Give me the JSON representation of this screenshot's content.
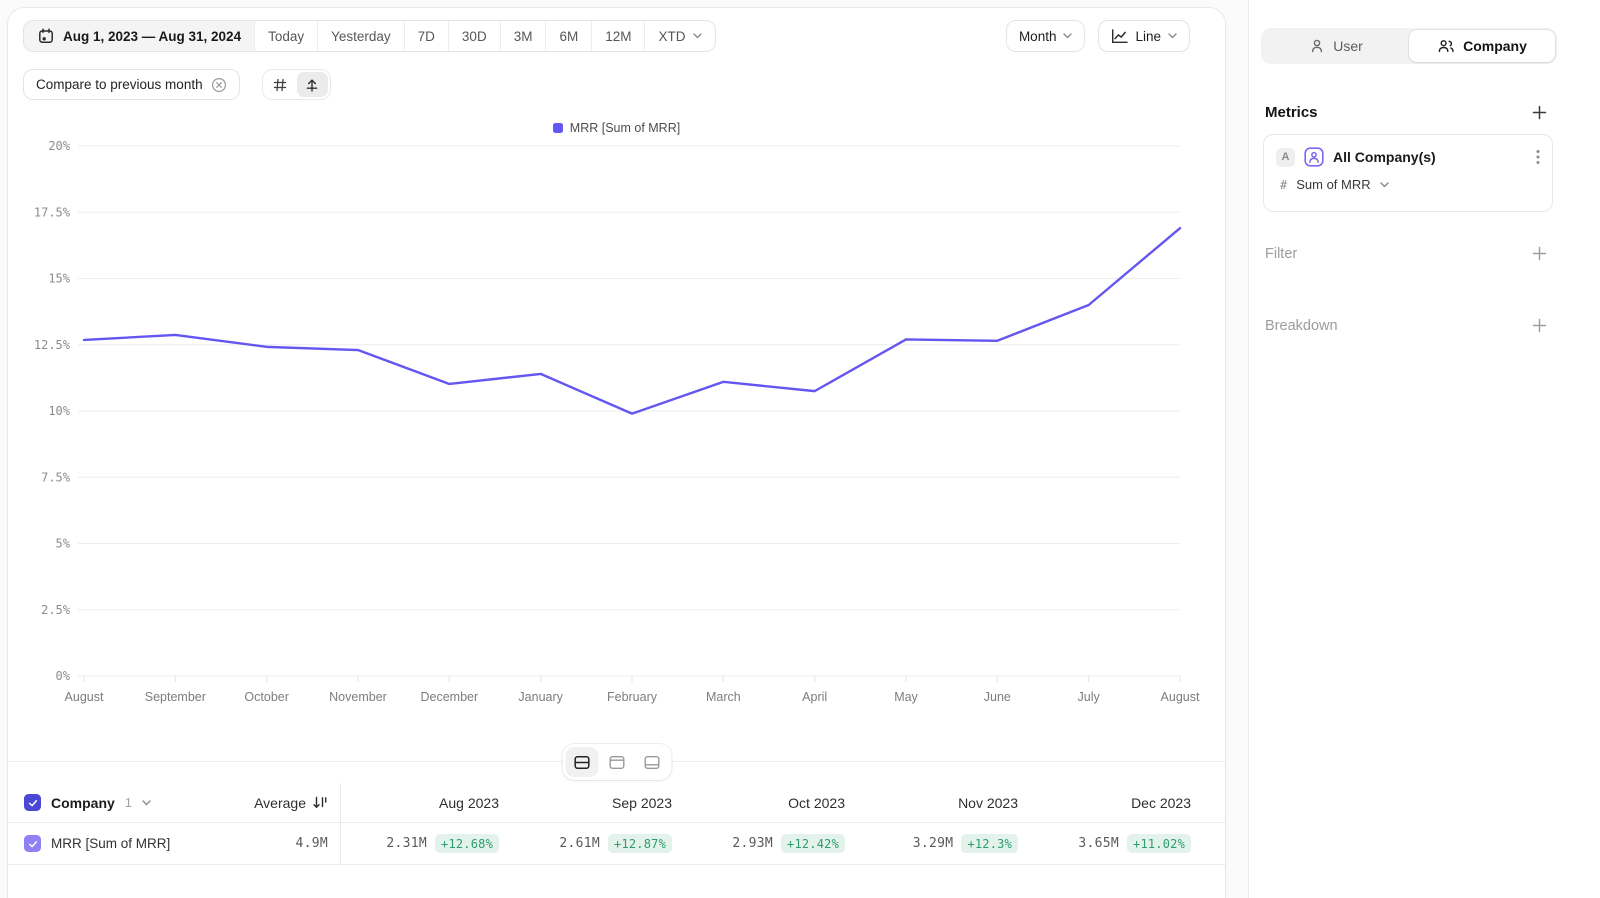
{
  "toolbar": {
    "date_range": "Aug 1, 2023 — Aug 31, 2024",
    "presets": [
      "Today",
      "Yesterday",
      "7D",
      "30D",
      "3M",
      "6M",
      "12M"
    ],
    "xtd_label": "XTD",
    "compare_chip_label": "Compare to previous month",
    "granularity_label": "Month",
    "chart_type_label": "Line"
  },
  "entity_toggle": {
    "user_label": "User",
    "company_label": "Company",
    "selected": "Company"
  },
  "sidebar": {
    "metrics_title": "Metrics",
    "metric_card": {
      "series_badge": "A",
      "entity_name": "All Company(s)",
      "aggregation_prefix": "#",
      "aggregation_label": "Sum of MRR"
    },
    "filter_title": "Filter",
    "breakdown_title": "Breakdown"
  },
  "chart_data": {
    "type": "line",
    "legend": [
      "MRR [Sum of MRR]"
    ],
    "legend_position": "top",
    "categories": [
      "August",
      "September",
      "October",
      "November",
      "December",
      "January",
      "February",
      "March",
      "April",
      "May",
      "June",
      "July",
      "August"
    ],
    "series": [
      {
        "name": "MRR [Sum of MRR]",
        "values": [
          12.68,
          12.87,
          12.42,
          12.3,
          11.02,
          11.4,
          9.9,
          11.1,
          10.75,
          12.7,
          12.65,
          14.0,
          16.9
        ]
      }
    ],
    "unit": "%",
    "ylim": [
      0,
      20
    ],
    "yticks": [
      0,
      2.5,
      5,
      7.5,
      10,
      12.5,
      15,
      17.5,
      20
    ],
    "ytick_labels": [
      "0%",
      "2.5%",
      "5%",
      "7.5%",
      "10%",
      "12.5%",
      "15%",
      "17.5%",
      "20%"
    ],
    "grid": true,
    "line_color": "#6456F0"
  },
  "table": {
    "entity_label": "Company",
    "entity_count": "1",
    "average_label": "Average",
    "columns": [
      "Aug 2023",
      "Sep 2023",
      "Oct 2023",
      "Nov 2023",
      "Dec 2023"
    ],
    "rows": [
      {
        "name": "MRR [Sum of MRR]",
        "average": "4.9M",
        "cells": [
          {
            "value": "2.31M",
            "delta": "+12.68%"
          },
          {
            "value": "2.61M",
            "delta": "+12.87%"
          },
          {
            "value": "2.93M",
            "delta": "+12.42%"
          },
          {
            "value": "3.29M",
            "delta": "+12.3%"
          },
          {
            "value": "3.65M",
            "delta": "+11.02%"
          }
        ]
      }
    ]
  },
  "view_toggle": {
    "options": [
      "split",
      "chart",
      "table"
    ],
    "selected": "split"
  },
  "colors": {
    "accent": "#6456F0",
    "positive": "#2D9C74",
    "positive_bg": "#E4F2EC",
    "checkbox_header": "#4B48D6",
    "checkbox_row": "#8F80F4"
  },
  "icons": [
    "calendar-icon",
    "chevron-down-icon",
    "close-circle-icon",
    "grid-icon",
    "arrow-up-from-line-icon",
    "line-chart-icon",
    "user-icon",
    "company-icon",
    "plus-icon",
    "kebab-menu-icon",
    "hash-icon",
    "sort-icon",
    "split-view-icon",
    "chart-view-icon",
    "table-view-icon"
  ]
}
